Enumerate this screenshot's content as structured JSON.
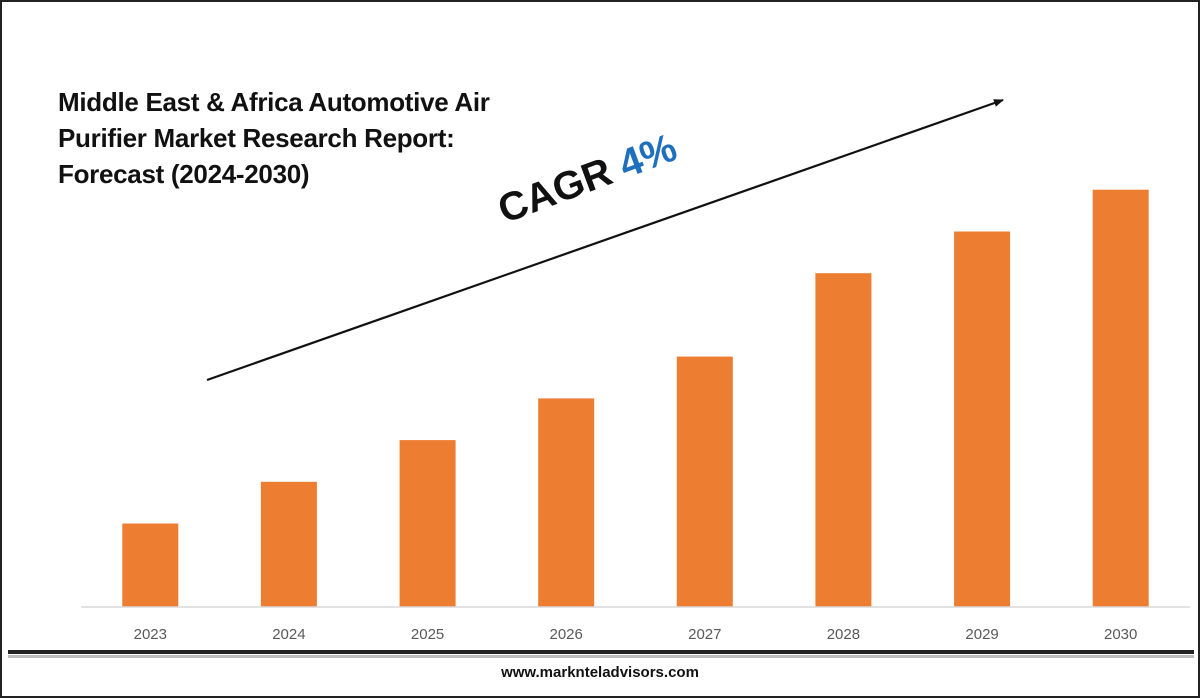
{
  "title_lines": [
    "Middle East & Africa Automotive Air",
    "Purifier Market Research Report:",
    "Forecast (2024-2030)"
  ],
  "annotation": {
    "label": "CAGR",
    "value": "4%",
    "value_color": "#1f6fbf"
  },
  "footer": {
    "website": "www.marknteladvisors.com"
  },
  "colors": {
    "bar": "#ed7d31",
    "axis": "#d9d9d9",
    "tick_text": "#595959",
    "arrow": "#111111"
  },
  "chart_data": {
    "type": "bar",
    "title": "Middle East & Africa Automotive Air Purifier Market Research Report: Forecast (2024-2030)",
    "categories": [
      "2023",
      "2024",
      "2025",
      "2026",
      "2027",
      "2028",
      "2029",
      "2030"
    ],
    "values": [
      1.0,
      1.5,
      2.0,
      2.5,
      3.0,
      4.0,
      4.5,
      5.0
    ],
    "ylim": [
      0,
      5.5
    ],
    "grid": false,
    "xlabel": "",
    "ylabel": "",
    "annotations": [
      "CAGR 4%"
    ]
  }
}
